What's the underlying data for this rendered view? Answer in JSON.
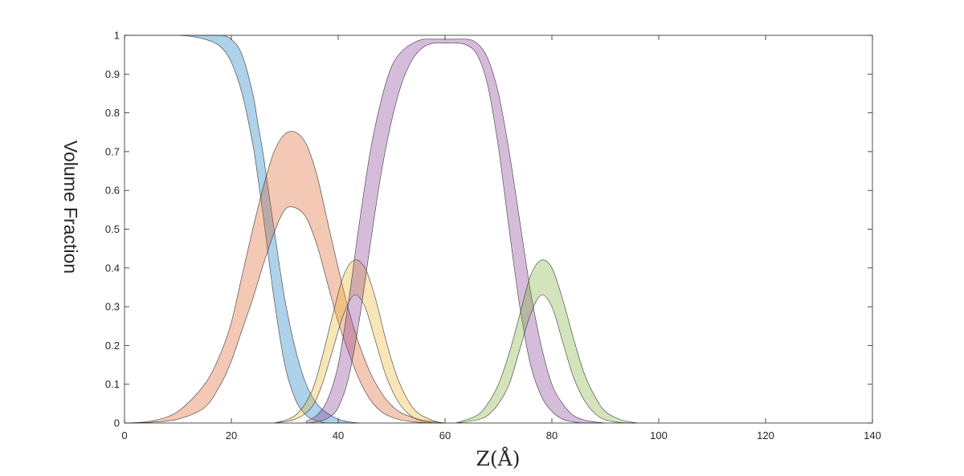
{
  "chart_data": {
    "type": "area",
    "title": "",
    "xlabel": "Z(Å)",
    "ylabel": "Volume Fraction",
    "xlim": [
      0,
      140
    ],
    "ylim": [
      0,
      1
    ],
    "x_ticks": [
      "0",
      "20",
      "40",
      "60",
      "80",
      "100",
      "120",
      "140"
    ],
    "y_ticks": [
      "0",
      "0.1",
      "0.2",
      "0.3",
      "0.4",
      "0.5",
      "0.6",
      "0.7",
      "0.8",
      "0.9",
      "1"
    ],
    "grid": false,
    "legend": "none",
    "series": [
      {
        "color": "#0072BD",
        "x": [
          0,
          10,
          15,
          18,
          20,
          22,
          24,
          25,
          26,
          28,
          30,
          32,
          34,
          36,
          38,
          40,
          42,
          44
        ],
        "lower": [
          1.0,
          1.0,
          0.99,
          0.97,
          0.93,
          0.85,
          0.72,
          0.63,
          0.53,
          0.32,
          0.15,
          0.06,
          0.02,
          0.005,
          0.0,
          0.0,
          0.0,
          0.0
        ],
        "upper": [
          1.0,
          1.0,
          1.0,
          1.0,
          0.99,
          0.95,
          0.85,
          0.77,
          0.69,
          0.5,
          0.32,
          0.19,
          0.1,
          0.05,
          0.025,
          0.01,
          0.003,
          0.0
        ]
      },
      {
        "color": "#D95319",
        "x": [
          0,
          5,
          10,
          15,
          18,
          20,
          22,
          24,
          26,
          28,
          30,
          32,
          34,
          36,
          38,
          40,
          42,
          44,
          46,
          48,
          50,
          52,
          55,
          58,
          60
        ],
        "lower": [
          0.0,
          0.002,
          0.01,
          0.04,
          0.1,
          0.16,
          0.24,
          0.32,
          0.41,
          0.49,
          0.55,
          0.555,
          0.53,
          0.46,
          0.36,
          0.26,
          0.18,
          0.11,
          0.06,
          0.03,
          0.015,
          0.007,
          0.002,
          0.0,
          0.0
        ],
        "upper": [
          0.0,
          0.005,
          0.03,
          0.1,
          0.18,
          0.26,
          0.38,
          0.5,
          0.61,
          0.7,
          0.745,
          0.75,
          0.72,
          0.64,
          0.52,
          0.4,
          0.29,
          0.2,
          0.13,
          0.08,
          0.045,
          0.025,
          0.01,
          0.003,
          0.0
        ]
      },
      {
        "color": "#EDB120",
        "x": [
          28,
          32,
          35,
          37,
          39,
          41,
          43,
          45,
          47,
          49,
          51,
          53,
          55,
          58,
          60
        ],
        "lower": [
          0.0,
          0.01,
          0.04,
          0.1,
          0.19,
          0.28,
          0.33,
          0.3,
          0.21,
          0.12,
          0.06,
          0.025,
          0.008,
          0.0,
          0.0
        ],
        "upper": [
          0.0,
          0.02,
          0.08,
          0.17,
          0.28,
          0.38,
          0.42,
          0.4,
          0.32,
          0.21,
          0.12,
          0.06,
          0.025,
          0.005,
          0.0
        ]
      },
      {
        "color": "#7E2F8E",
        "x": [
          34,
          36,
          38,
          40,
          42,
          44,
          46,
          48,
          50,
          52,
          54,
          56,
          58,
          60,
          62,
          64,
          66,
          68,
          70,
          72,
          74,
          76,
          78,
          80,
          82,
          84,
          86,
          88,
          90
        ],
        "lower": [
          0.0,
          0.003,
          0.012,
          0.04,
          0.12,
          0.27,
          0.46,
          0.64,
          0.78,
          0.88,
          0.94,
          0.97,
          0.98,
          0.98,
          0.98,
          0.975,
          0.95,
          0.87,
          0.71,
          0.5,
          0.3,
          0.15,
          0.07,
          0.03,
          0.01,
          0.003,
          0.0,
          0.0,
          0.0
        ],
        "upper": [
          0.005,
          0.02,
          0.06,
          0.15,
          0.32,
          0.52,
          0.7,
          0.83,
          0.92,
          0.96,
          0.98,
          0.99,
          0.99,
          0.99,
          0.99,
          0.99,
          0.98,
          0.94,
          0.85,
          0.7,
          0.52,
          0.34,
          0.2,
          0.1,
          0.05,
          0.02,
          0.008,
          0.003,
          0.0
        ]
      },
      {
        "color": "#77AC30",
        "x": [
          62,
          66,
          68,
          70,
          72,
          74,
          76,
          78,
          80,
          82,
          84,
          86,
          88,
          90,
          93,
          96
        ],
        "lower": [
          0.0,
          0.008,
          0.02,
          0.05,
          0.1,
          0.19,
          0.28,
          0.33,
          0.3,
          0.21,
          0.12,
          0.06,
          0.025,
          0.008,
          0.001,
          0.0
        ],
        "upper": [
          0.0,
          0.02,
          0.05,
          0.1,
          0.18,
          0.28,
          0.38,
          0.42,
          0.4,
          0.32,
          0.22,
          0.13,
          0.07,
          0.03,
          0.008,
          0.0
        ]
      }
    ]
  }
}
